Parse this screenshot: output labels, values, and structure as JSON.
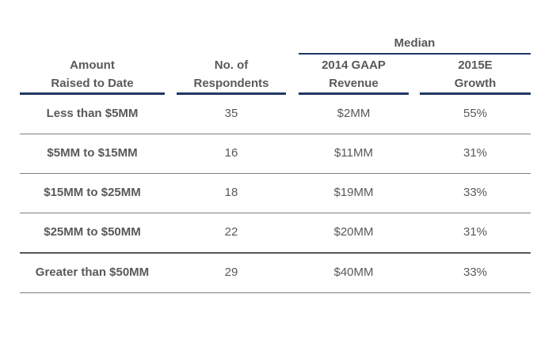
{
  "table": {
    "group_header": "Median",
    "columns": [
      {
        "line1": "Amount",
        "line2": "Raised to Date"
      },
      {
        "line1": "No. of",
        "line2": "Respondents"
      },
      {
        "line1": "2014 GAAP",
        "line2": "Revenue"
      },
      {
        "line1": "2015E",
        "line2": "Growth"
      }
    ],
    "rows": [
      {
        "amount": "Less than $5MM",
        "respondents": "35",
        "revenue": "$2MM",
        "growth": "55%"
      },
      {
        "amount": "$5MM to $15MM",
        "respondents": "16",
        "revenue": "$11MM",
        "growth": "31%"
      },
      {
        "amount": "$15MM to $25MM",
        "respondents": "18",
        "revenue": "$19MM",
        "growth": "33%"
      },
      {
        "amount": "$25MM to $50MM",
        "respondents": "22",
        "revenue": "$20MM",
        "growth": "31%"
      },
      {
        "amount": "Greater than $50MM",
        "respondents": "29",
        "revenue": "$40MM",
        "growth": "33%"
      }
    ]
  },
  "colors": {
    "header_rule": "#1f3864",
    "text": "#595959",
    "row_rule": "#7f7f7f"
  }
}
